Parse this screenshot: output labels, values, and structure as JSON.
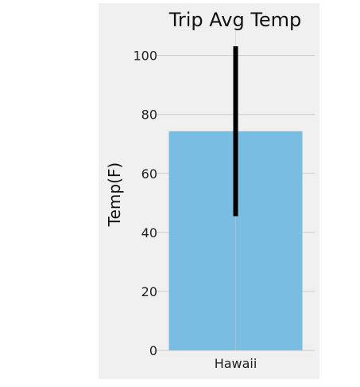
{
  "chart_data": {
    "type": "bar",
    "title": "Trip Avg Temp",
    "xlabel": "",
    "ylabel": "Temp(F)",
    "categories": [
      "Hawaii"
    ],
    "values": [
      74.3
    ],
    "error": {
      "low": 45.5,
      "high": 103.1
    },
    "ylim": [
      0,
      108
    ],
    "yticks": [
      0,
      20,
      40,
      60,
      80,
      100
    ],
    "grid": true,
    "style": {
      "bar_color": "#7abde2",
      "error_color": "#000000",
      "axes_background": "#f0f0f0",
      "grid_color": "#cbcbcb"
    }
  }
}
